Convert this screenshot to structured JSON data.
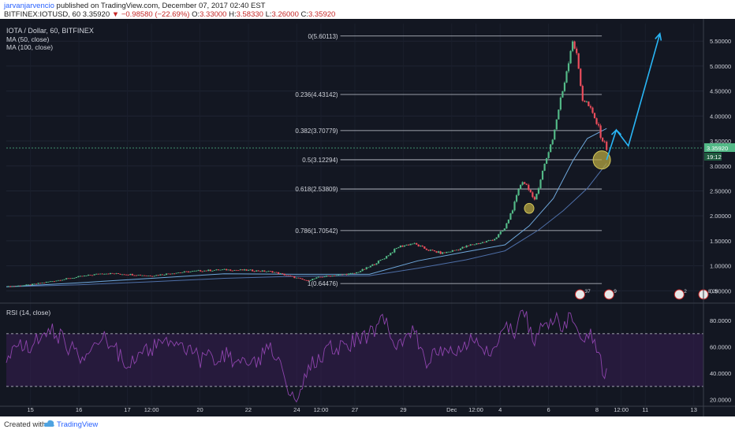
{
  "header": {
    "author": "jarvanjarvencio",
    "published": "published on TradingView.com, December 07, 2017 02:40 EST",
    "symbol": "BITFINEX:IOTUSD, 60",
    "last": "3.35920",
    "arrow": "▼",
    "change": "−0.98580 (−22.69%)",
    "o_label": "O:",
    "o_val": "3.33000",
    "h_label": "H:",
    "h_val": "3.58330",
    "l_label": "L:",
    "l_val": "3.26000",
    "c_label": "C:",
    "c_val": "3.35920"
  },
  "legend": {
    "title": "IOTA / Dollar, 60, BITFINEX",
    "ma50": "MA (50, close)",
    "ma100": "MA (100, close)",
    "rsi": "RSI (14, close)"
  },
  "footer": {
    "created": "Created with",
    "brand": "TradingView"
  },
  "colors": {
    "background": "#131722",
    "up": "#53b987",
    "down": "#eb4d5c",
    "ma50": "#6fa8dc",
    "ma100": "#4e6fa8",
    "fib": "#c8ccd6",
    "annotation": "#29b6f6",
    "rsi": "#8e44ad",
    "marker": "#b5a642"
  },
  "chart_data": {
    "type": "candlestick",
    "title": "IOTA / Dollar, 60, BITFINEX",
    "ylim": [
      0.3,
      5.85
    ],
    "price_ticks": [
      {
        "v": 0.5,
        "label": "0.50000"
      },
      {
        "v": 1.0,
        "label": "1.00000"
      },
      {
        "v": 1.5,
        "label": "1.50000"
      },
      {
        "v": 2.0,
        "label": "2.00000"
      },
      {
        "v": 2.5,
        "label": "2.50000"
      },
      {
        "v": 3.0,
        "label": "3.00000"
      },
      {
        "v": 3.5,
        "label": "3.50000"
      },
      {
        "v": 4.0,
        "label": "4.00000"
      },
      {
        "v": 4.5,
        "label": "4.50000"
      },
      {
        "v": 5.0,
        "label": "5.00000"
      },
      {
        "v": 5.5,
        "label": "5.50000"
      }
    ],
    "last_price": {
      "v": 3.3592,
      "label": "3.35920"
    },
    "countdown": "19:12",
    "x_range": [
      14.5,
      13.9
    ],
    "x_ticks": [
      {
        "t": 15,
        "label": "15"
      },
      {
        "t": 16,
        "label": "16"
      },
      {
        "t": 17,
        "label": "17"
      },
      {
        "t": 17.5,
        "label": "12:00"
      },
      {
        "t": 18.5,
        "label": "20"
      },
      {
        "t": 19.5,
        "label": "22"
      },
      {
        "t": 20.5,
        "label": "24"
      },
      {
        "t": 21,
        "label": "12:00"
      },
      {
        "t": 21.7,
        "label": "27"
      },
      {
        "t": 22.7,
        "label": "29"
      },
      {
        "t": 23.7,
        "label": "Dec"
      },
      {
        "t": 24.2,
        "label": "12:00"
      },
      {
        "t": 24.7,
        "label": "4"
      },
      {
        "t": 25.7,
        "label": "6"
      },
      {
        "t": 26.7,
        "label": "8"
      },
      {
        "t": 27.2,
        "label": "12:00"
      },
      {
        "t": 27.7,
        "label": "11"
      },
      {
        "t": 28.7,
        "label": "13"
      }
    ],
    "fibonacci": [
      {
        "level": "0",
        "price": 5.60113,
        "label": "0(5.60113)"
      },
      {
        "level": "0.236",
        "price": 4.43142,
        "label": "0.236(4.43142)"
      },
      {
        "level": "0.382",
        "price": 3.70779,
        "label": "0.382(3.70779)"
      },
      {
        "level": "0.5",
        "price": 3.12294,
        "label": "0.5(3.12294)"
      },
      {
        "level": "0.618",
        "price": 2.53809,
        "label": "0.618(2.53809)"
      },
      {
        "level": "0.786",
        "price": 1.70542,
        "label": "0.786(1.70542)"
      },
      {
        "level": "1",
        "price": 0.64476,
        "label": "1(0.64476)"
      }
    ],
    "price_path": [
      [
        14.5,
        0.58
      ],
      [
        15.0,
        0.62
      ],
      [
        15.5,
        0.7
      ],
      [
        16.0,
        0.78
      ],
      [
        16.5,
        0.85
      ],
      [
        17.0,
        0.83
      ],
      [
        17.5,
        0.8
      ],
      [
        18.0,
        0.86
      ],
      [
        18.5,
        0.9
      ],
      [
        19.0,
        0.92
      ],
      [
        19.5,
        0.91
      ],
      [
        20.0,
        0.88
      ],
      [
        20.4,
        0.78
      ],
      [
        20.7,
        0.7
      ],
      [
        21.0,
        0.78
      ],
      [
        21.4,
        0.82
      ],
      [
        21.7,
        0.85
      ],
      [
        22.0,
        0.98
      ],
      [
        22.3,
        1.15
      ],
      [
        22.6,
        1.38
      ],
      [
        22.9,
        1.45
      ],
      [
        23.2,
        1.32
      ],
      [
        23.5,
        1.25
      ],
      [
        23.8,
        1.32
      ],
      [
        24.1,
        1.42
      ],
      [
        24.4,
        1.48
      ],
      [
        24.6,
        1.55
      ],
      [
        24.8,
        1.75
      ],
      [
        25.0,
        2.25
      ],
      [
        25.15,
        2.72
      ],
      [
        25.3,
        2.55
      ],
      [
        25.4,
        2.25
      ],
      [
        25.55,
        2.8
      ],
      [
        25.7,
        3.3
      ],
      [
        25.8,
        3.6
      ],
      [
        25.9,
        4.1
      ],
      [
        26.0,
        4.55
      ],
      [
        26.1,
        5.05
      ],
      [
        26.2,
        5.55
      ],
      [
        26.3,
        5.1
      ],
      [
        26.4,
        4.35
      ],
      [
        26.5,
        4.25
      ],
      [
        26.6,
        4.05
      ],
      [
        26.7,
        3.85
      ],
      [
        26.8,
        3.55
      ],
      [
        26.9,
        3.36
      ]
    ],
    "ma50": [
      [
        14.5,
        0.58
      ],
      [
        16.0,
        0.66
      ],
      [
        17.5,
        0.75
      ],
      [
        19.0,
        0.84
      ],
      [
        20.5,
        0.83
      ],
      [
        22.0,
        0.83
      ],
      [
        23.0,
        1.1
      ],
      [
        24.0,
        1.28
      ],
      [
        24.8,
        1.42
      ],
      [
        25.3,
        1.8
      ],
      [
        25.8,
        2.35
      ],
      [
        26.2,
        3.1
      ],
      [
        26.5,
        3.55
      ],
      [
        26.9,
        3.75
      ]
    ],
    "ma100": [
      [
        14.5,
        0.58
      ],
      [
        16.0,
        0.62
      ],
      [
        17.5,
        0.68
      ],
      [
        19.0,
        0.75
      ],
      [
        20.5,
        0.79
      ],
      [
        22.0,
        0.8
      ],
      [
        23.0,
        0.95
      ],
      [
        24.0,
        1.12
      ],
      [
        24.8,
        1.3
      ],
      [
        25.5,
        1.72
      ],
      [
        26.0,
        2.1
      ],
      [
        26.5,
        2.55
      ],
      [
        26.9,
        3.05
      ]
    ],
    "forecast_arrow": [
      [
        26.9,
        3.12
      ],
      [
        27.1,
        3.72
      ],
      [
        27.35,
        3.4
      ],
      [
        28.0,
        5.65
      ]
    ],
    "markers": [
      {
        "t": 25.3,
        "price": 2.15,
        "r": 6
      },
      {
        "t": 26.8,
        "price": 3.12,
        "r": 11
      }
    ],
    "events": [
      {
        "t": 26.35,
        "label": "37"
      },
      {
        "t": 26.95,
        "label": "9"
      },
      {
        "t": 28.4,
        "label": "2"
      },
      {
        "t": 28.9,
        "label": "8 28"
      }
    ],
    "rsi": {
      "label": "RSI (14, close)",
      "ylim": [
        15,
        92
      ],
      "upper": 70,
      "lower": 30,
      "ticks": [
        {
          "v": 20,
          "label": "20.0000"
        },
        {
          "v": 40,
          "label": "40.0000"
        },
        {
          "v": 60,
          "label": "60.0000"
        },
        {
          "v": 80,
          "label": "80.0000"
        }
      ],
      "path": [
        [
          14.5,
          55
        ],
        [
          15.0,
          62
        ],
        [
          15.5,
          72
        ],
        [
          16.0,
          52
        ],
        [
          16.5,
          66
        ],
        [
          17.0,
          48
        ],
        [
          17.5,
          58
        ],
        [
          18.0,
          68
        ],
        [
          18.5,
          50
        ],
        [
          19.0,
          55
        ],
        [
          19.5,
          44
        ],
        [
          20.0,
          60
        ],
        [
          20.3,
          32
        ],
        [
          20.5,
          22
        ],
        [
          20.8,
          48
        ],
        [
          21.2,
          60
        ],
        [
          21.6,
          62
        ],
        [
          22.0,
          70
        ],
        [
          22.3,
          80
        ],
        [
          22.6,
          62
        ],
        [
          22.9,
          72
        ],
        [
          23.2,
          48
        ],
        [
          23.5,
          58
        ],
        [
          23.8,
          52
        ],
        [
          24.1,
          66
        ],
        [
          24.4,
          56
        ],
        [
          24.6,
          62
        ],
        [
          24.8,
          80
        ],
        [
          25.0,
          70
        ],
        [
          25.2,
          88
        ],
        [
          25.4,
          60
        ],
        [
          25.6,
          78
        ],
        [
          25.8,
          82
        ],
        [
          26.0,
          74
        ],
        [
          26.2,
          83
        ],
        [
          26.4,
          62
        ],
        [
          26.6,
          70
        ],
        [
          26.8,
          45
        ],
        [
          26.9,
          40
        ]
      ]
    }
  }
}
